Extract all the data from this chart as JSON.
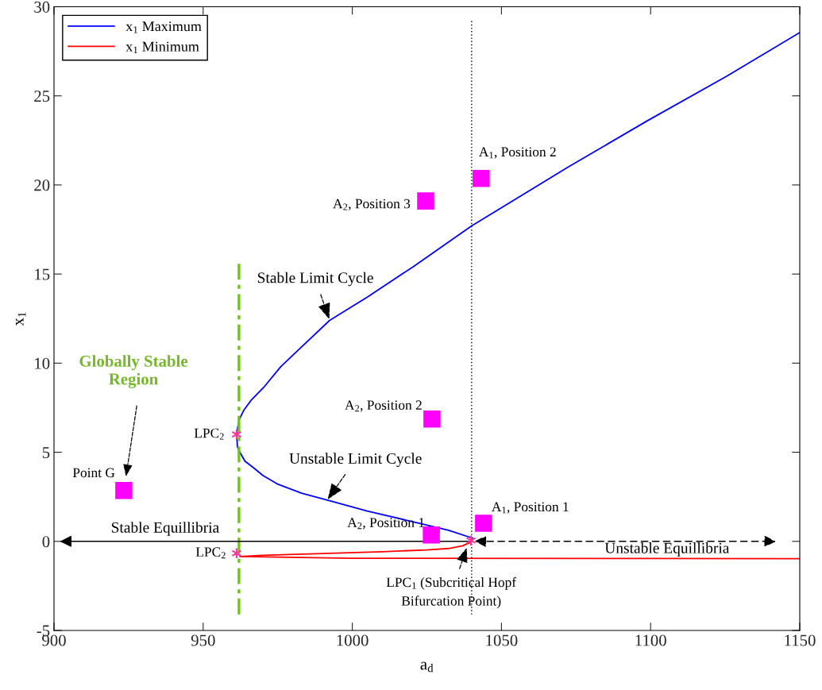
{
  "chart_data": {
    "type": "line",
    "xlabel": "a$_{d}$",
    "ylabel": "x$_{1}$",
    "xlim": [
      900,
      1150
    ],
    "ylim": [
      -5,
      30
    ],
    "xticks": [
      900,
      950,
      1000,
      1050,
      1100,
      1150
    ],
    "yticks": [
      -5,
      0,
      5,
      10,
      15,
      20,
      25,
      30
    ],
    "grid": false,
    "legend": "top left",
    "series": [
      {
        "name": "x$_{1}$ Maximum",
        "color": "#0000ff",
        "line_style": "solid",
        "x": [
          1040.3,
          1032.3,
          1020.3,
          1005,
          991.9,
          983,
          975.1,
          970,
          967.1,
          964,
          962.3,
          961.5,
          961.3,
          961.5,
          962.0,
          963.6,
          966,
          970.6,
          976,
          982.3,
          992.4,
          1005,
          1020.3,
          1040,
          1072.3,
          1098.9,
          1125.5,
          1150
        ],
        "values": [
          0.18,
          0.62,
          1.1,
          1.7,
          2.3,
          2.7,
          3.2,
          3.7,
          4.1,
          4.5,
          5.0,
          5.3,
          5.8,
          6.3,
          6.8,
          7.35,
          7.9,
          8.7,
          9.8,
          10.8,
          12.4,
          13.7,
          15.4,
          17.7,
          21.0,
          23.6,
          26.1,
          28.55
        ]
      },
      {
        "name": "x$_{1}$ Minimum",
        "color": "#ff0000",
        "line_style": "solid",
        "x": [
          1150,
          1100,
          1000,
          962.3,
          970,
          990,
          1010,
          1025,
          1032.3,
          1037,
          1040.3
        ],
        "values": [
          -0.97,
          -0.96,
          -0.95,
          -0.85,
          -0.78,
          -0.68,
          -0.58,
          -0.48,
          -0.4,
          -0.25,
          0.0
        ]
      },
      {
        "color": "#ff00ff",
        "type": "scatter",
        "marker": "square",
        "x": [
          923.4,
          1026.5,
          1044.0,
          1026.7,
          1024.6,
          1043.2
        ],
        "values": [
          2.85,
          0.36,
          1.02,
          6.86,
          19.1,
          20.36
        ]
      },
      {
        "color": "#ff3399",
        "type": "scatter",
        "marker": "cross",
        "x": [
          961.2,
          961.2,
          1039.8
        ],
        "values": [
          6.0,
          -0.67,
          0.05
        ]
      },
      {
        "color": "#66cc00",
        "line_style": "dashdot",
        "x": [
          962,
          962
        ],
        "values": [
          -4.1,
          15.8
        ]
      },
      {
        "color": "#000000",
        "line_style": "dotted",
        "x": [
          1040,
          1040
        ],
        "values": [
          -4.1,
          29.2
        ]
      }
    ],
    "annotations": [
      "Globally Stable\nRegion",
      {
        "text": "Point G",
        "x": 923.4,
        "y": 2.85
      },
      {
        "text": "A$_{2}$, Position 1",
        "x": 1026.5,
        "y": 0.36
      },
      {
        "text": "A$_{1}$, Position 1",
        "x": 1044.0,
        "y": 1.02
      },
      {
        "text": "A$_{2}$, Position 2",
        "x": 1026.7,
        "y": 6.86
      },
      {
        "text": "A$_{2}$, Position 3",
        "x": 1024.6,
        "y": 19.1
      },
      {
        "text": "A$_{1}$, Position 2",
        "x": 1043.2,
        "y": 20.36
      },
      {
        "text": "LPC$_{2}$",
        "x": 961.2,
        "y": 6.0
      },
      {
        "text": "LPC$_{2}$",
        "x": 961.2,
        "y": -0.67
      },
      {
        "text": "LPC$_{1}$ (Subcritical Hopf\nBifurcation Point)",
        "x": 1038.5,
        "y": -0.3
      },
      {
        "text": "Stable Limit Cycle",
        "x": 992.4,
        "y": 12.4
      },
      {
        "text": "Unstable Limit Cycle",
        "x": 991.5,
        "y": 2.3
      },
      "Stable Equillibria",
      "Unstable Equillibria"
    ]
  }
}
